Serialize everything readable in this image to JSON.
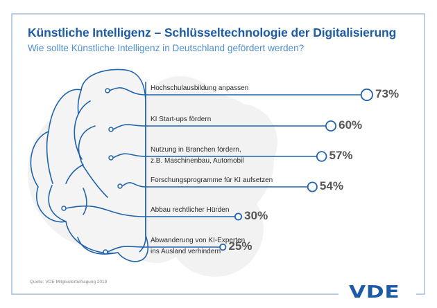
{
  "header": {
    "title": "Künstliche Intelligenz – Schlüsseltechnologie der Digitalisierung",
    "subtitle": "Wie sollte Künstliche Intelligenz in Deutschland gefördert werden?"
  },
  "footer": {
    "source": "Quelle: VDE Mitgliederbefragung 2018",
    "logo": "VDE"
  },
  "colors": {
    "brand_blue": "#1d5ba6",
    "subtitle_blue": "#4f8fcd",
    "line_blue": "#2063ad",
    "cloud_gray": "#f2f2f2",
    "value_gray": "#555555"
  },
  "chart_data": {
    "type": "bar",
    "title": "Künstliche Intelligenz – Schlüsseltechnologie der Digitalisierung",
    "subtitle": "Wie sollte Künstliche Intelligenz in Deutschland gefördert werden?",
    "xlabel": "",
    "ylabel": "",
    "unit": "%",
    "orientation": "horizontal",
    "categories": [
      [
        "Hochschulausbildung anpassen"
      ],
      [
        "KI Start-ups fördern"
      ],
      [
        "Nutzung in Branchen fördern,",
        "z.B. Maschinenbau, Automobil"
      ],
      [
        "Forschungsprogramme für KI aufsetzen"
      ],
      [
        "Abbau rechtlicher Hürden"
      ],
      [
        "Abwanderung von KI-Experten",
        "ins Ausland verhindern"
      ]
    ],
    "values": [
      73,
      60,
      57,
      54,
      30,
      25
    ],
    "value_labels": [
      "73%",
      "60%",
      "57%",
      "54%",
      "30%",
      "25%"
    ],
    "source": "Quelle: VDE Mitgliederbefragung 2018"
  }
}
